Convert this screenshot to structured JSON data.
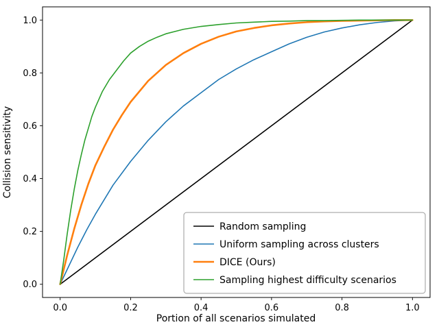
{
  "figure": {
    "background": "#ffffff",
    "spine_color": "#000000"
  },
  "chart_data": {
    "type": "line",
    "title": "",
    "xlabel": "Portion of all scenarios simulated",
    "ylabel": "Collision sensitivity",
    "xlim": [
      -0.05,
      1.05
    ],
    "ylim": [
      -0.05,
      1.05
    ],
    "x_ticks": [
      "0.0",
      "0.2",
      "0.4",
      "0.6",
      "0.8",
      "1.0"
    ],
    "y_ticks": [
      "0.0",
      "0.2",
      "0.4",
      "0.6",
      "0.8",
      "1.0"
    ],
    "grid": false,
    "legend_position": "lower right",
    "series": [
      {
        "name": "Random sampling",
        "color": "#000000",
        "linewidth": 1.6,
        "points": [
          [
            0,
            0
          ],
          [
            1,
            1
          ]
        ]
      },
      {
        "name": "Uniform sampling across clusters",
        "color": "#1f77b4",
        "linewidth": 1.6,
        "points": [
          [
            0,
            0
          ],
          [
            0.025,
            0.07
          ],
          [
            0.05,
            0.14
          ],
          [
            0.075,
            0.205
          ],
          [
            0.1,
            0.265
          ],
          [
            0.15,
            0.375
          ],
          [
            0.2,
            0.465
          ],
          [
            0.25,
            0.545
          ],
          [
            0.3,
            0.615
          ],
          [
            0.35,
            0.675
          ],
          [
            0.4,
            0.725
          ],
          [
            0.45,
            0.775
          ],
          [
            0.5,
            0.815
          ],
          [
            0.55,
            0.85
          ],
          [
            0.6,
            0.88
          ],
          [
            0.65,
            0.91
          ],
          [
            0.7,
            0.935
          ],
          [
            0.75,
            0.955
          ],
          [
            0.8,
            0.97
          ],
          [
            0.85,
            0.982
          ],
          [
            0.9,
            0.991
          ],
          [
            0.95,
            0.997
          ],
          [
            1.0,
            1.0
          ]
        ]
      },
      {
        "name": "DICE (Ours)",
        "color": "#ff7f0e",
        "linewidth": 2.6,
        "points": [
          [
            0,
            0
          ],
          [
            0.02,
            0.11
          ],
          [
            0.04,
            0.21
          ],
          [
            0.06,
            0.3
          ],
          [
            0.08,
            0.38
          ],
          [
            0.1,
            0.45
          ],
          [
            0.125,
            0.52
          ],
          [
            0.15,
            0.585
          ],
          [
            0.175,
            0.64
          ],
          [
            0.2,
            0.69
          ],
          [
            0.25,
            0.77
          ],
          [
            0.3,
            0.83
          ],
          [
            0.35,
            0.875
          ],
          [
            0.4,
            0.91
          ],
          [
            0.45,
            0.937
          ],
          [
            0.5,
            0.957
          ],
          [
            0.55,
            0.97
          ],
          [
            0.6,
            0.98
          ],
          [
            0.65,
            0.987
          ],
          [
            0.7,
            0.992
          ],
          [
            0.75,
            0.995
          ],
          [
            0.8,
            0.997
          ],
          [
            0.85,
            0.998
          ],
          [
            0.9,
            0.999
          ],
          [
            0.95,
            1.0
          ],
          [
            1.0,
            1.0
          ]
        ]
      },
      {
        "name": "Sampling highest difficulty scenarios",
        "color": "#2ca02c",
        "linewidth": 1.6,
        "points": [
          [
            0,
            0
          ],
          [
            0.01,
            0.09
          ],
          [
            0.02,
            0.19
          ],
          [
            0.03,
            0.28
          ],
          [
            0.04,
            0.36
          ],
          [
            0.05,
            0.43
          ],
          [
            0.06,
            0.49
          ],
          [
            0.07,
            0.545
          ],
          [
            0.08,
            0.59
          ],
          [
            0.09,
            0.635
          ],
          [
            0.1,
            0.67
          ],
          [
            0.12,
            0.73
          ],
          [
            0.14,
            0.775
          ],
          [
            0.16,
            0.81
          ],
          [
            0.18,
            0.845
          ],
          [
            0.2,
            0.875
          ],
          [
            0.225,
            0.9
          ],
          [
            0.25,
            0.92
          ],
          [
            0.275,
            0.935
          ],
          [
            0.3,
            0.948
          ],
          [
            0.35,
            0.965
          ],
          [
            0.4,
            0.976
          ],
          [
            0.45,
            0.983
          ],
          [
            0.5,
            0.989
          ],
          [
            0.55,
            0.992
          ],
          [
            0.6,
            0.995
          ],
          [
            0.65,
            0.996
          ],
          [
            0.7,
            0.998
          ],
          [
            0.75,
            0.998
          ],
          [
            0.8,
            0.999
          ],
          [
            0.85,
            1.0
          ],
          [
            0.9,
            1.0
          ],
          [
            1.0,
            1.0
          ]
        ]
      }
    ],
    "legend": {
      "entries": [
        {
          "label": "Random sampling",
          "color": "#000000",
          "linewidth": 1.6
        },
        {
          "label": "Uniform sampling across clusters",
          "color": "#1f77b4",
          "linewidth": 1.6
        },
        {
          "label": "DICE (Ours)",
          "color": "#ff7f0e",
          "linewidth": 2.6
        },
        {
          "label": "Sampling highest difficulty scenarios",
          "color": "#2ca02c",
          "linewidth": 1.6
        }
      ]
    }
  }
}
